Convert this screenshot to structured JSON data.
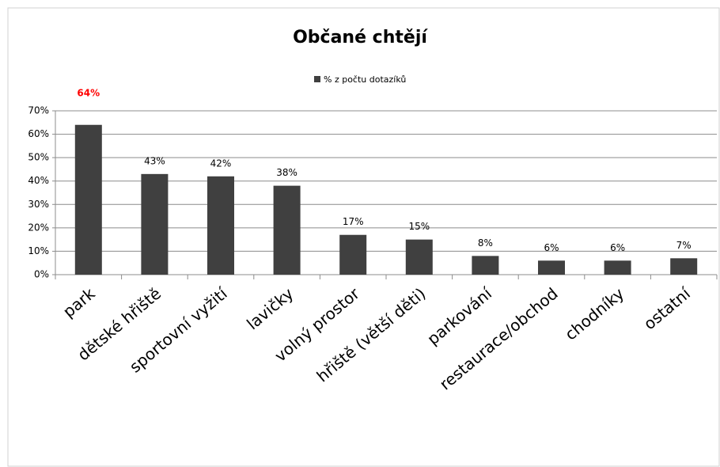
{
  "chart_data": {
    "type": "bar",
    "title": "Občané chtějí",
    "categories": [
      "park",
      "dětské hřiště",
      "sportovní vyžití",
      "lavičky",
      "volný prostor",
      "hřiště (větší děti)",
      "parkování",
      "restaurace/obchod",
      "chodníky",
      "ostatní"
    ],
    "series": [
      {
        "name": "% z počtu dotazíků",
        "color": "#404040",
        "values": [
          64,
          43,
          42,
          38,
          17,
          15,
          8,
          6,
          6,
          7
        ],
        "value_labels": [
          "64%",
          "43%",
          "42%",
          "38%",
          "17%",
          "15%",
          "8%",
          "6%",
          "6%",
          "7%"
        ],
        "value_label_colors": [
          "#ff0000",
          "#000000",
          "#000000",
          "#000000",
          "#000000",
          "#000000",
          "#000000",
          "#000000",
          "#000000",
          "#000000"
        ]
      }
    ],
    "ylim": [
      0,
      70
    ],
    "yticks": [
      {
        "value": 0,
        "label": "0%"
      },
      {
        "value": 10,
        "label": "10%"
      },
      {
        "value": 20,
        "label": "20%"
      },
      {
        "value": 30,
        "label": "30%"
      },
      {
        "value": 40,
        "label": "40%"
      },
      {
        "value": 50,
        "label": "50%"
      },
      {
        "value": 60,
        "label": "60%"
      },
      {
        "value": 70,
        "label": "70%"
      }
    ],
    "grid": true,
    "legend": "top"
  }
}
